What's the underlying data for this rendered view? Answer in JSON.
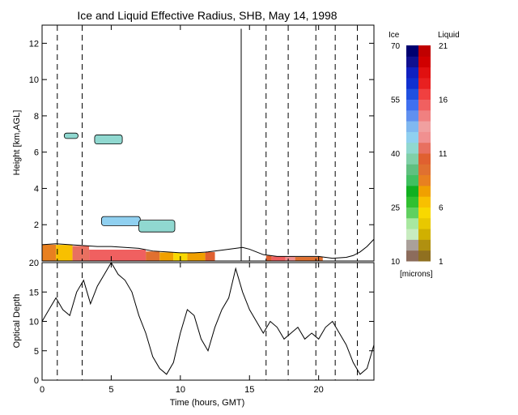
{
  "title": "Ice and Liquid Effective Radius, SHB, May 14, 1998",
  "chart_data": [
    {
      "type": "heatmap",
      "ylabel": "Height [km,AGL]",
      "xlim": [
        0,
        24
      ],
      "ylim": [
        0,
        13
      ],
      "x_ticks": [
        {
          "v": 0,
          "label": "0"
        },
        {
          "v": 5,
          "label": "5"
        },
        {
          "v": 10,
          "label": "10"
        },
        {
          "v": 15,
          "label": "15"
        },
        {
          "v": 20,
          "label": "20"
        }
      ],
      "y_ticks": [
        {
          "v": 2,
          "label": "2"
        },
        {
          "v": 4,
          "label": "4"
        },
        {
          "v": 6,
          "label": "6"
        },
        {
          "v": 8,
          "label": "8"
        },
        {
          "v": 10,
          "label": "10"
        },
        {
          "v": 12,
          "label": "12"
        }
      ],
      "dashed_lines_hours": [
        1.1,
        2.9,
        16.2,
        17.8,
        19.8,
        21.2,
        22.8
      ],
      "ice_clouds": [
        {
          "x0": 1.6,
          "x1": 2.6,
          "y0": 6.75,
          "y1": 7.05,
          "value": 40
        },
        {
          "x0": 3.8,
          "x1": 5.8,
          "y0": 6.45,
          "y1": 6.95,
          "value": 40
        },
        {
          "x0": 4.3,
          "x1": 7.1,
          "y0": 1.95,
          "y1": 2.45,
          "value": 45
        },
        {
          "x0": 7.0,
          "x1": 9.6,
          "y0": 1.6,
          "y1": 2.25,
          "value": 40
        }
      ],
      "low_cloud_top": [
        {
          "x": 0.0,
          "y": 0.9
        },
        {
          "x": 1.0,
          "y": 0.95
        },
        {
          "x": 2.0,
          "y": 0.9
        },
        {
          "x": 3.0,
          "y": 0.85
        },
        {
          "x": 4.0,
          "y": 0.8
        },
        {
          "x": 5.0,
          "y": 0.8
        },
        {
          "x": 6.0,
          "y": 0.75
        },
        {
          "x": 7.0,
          "y": 0.7
        },
        {
          "x": 8.0,
          "y": 0.55
        },
        {
          "x": 9.0,
          "y": 0.5
        },
        {
          "x": 10.0,
          "y": 0.45
        },
        {
          "x": 11.0,
          "y": 0.45
        },
        {
          "x": 12.0,
          "y": 0.5
        },
        {
          "x": 13.0,
          "y": 0.6
        },
        {
          "x": 14.0,
          "y": 0.7
        },
        {
          "x": 14.5,
          "y": 0.75
        },
        {
          "x": 15.0,
          "y": 0.65
        },
        {
          "x": 15.5,
          "y": 0.5
        },
        {
          "x": 16.0,
          "y": 0.35
        },
        {
          "x": 16.5,
          "y": 0.3
        },
        {
          "x": 17.0,
          "y": 0.25
        },
        {
          "x": 18.0,
          "y": 0.25
        },
        {
          "x": 19.0,
          "y": 0.25
        },
        {
          "x": 20.0,
          "y": 0.25
        },
        {
          "x": 20.5,
          "y": 0.2
        },
        {
          "x": 21.0,
          "y": 0.15
        },
        {
          "x": 22.0,
          "y": 0.2
        },
        {
          "x": 22.5,
          "y": 0.3
        },
        {
          "x": 23.0,
          "y": 0.5
        },
        {
          "x": 23.5,
          "y": 0.8
        },
        {
          "x": 24.0,
          "y": 1.2
        }
      ],
      "liquid_segments": [
        {
          "x0": 0.0,
          "x1": 1.0,
          "value": 8
        },
        {
          "x0": 1.0,
          "x1": 2.2,
          "value": 6
        },
        {
          "x0": 2.2,
          "x1": 3.4,
          "value": 11
        },
        {
          "x0": 3.4,
          "x1": 7.5,
          "value": 15
        },
        {
          "x0": 7.5,
          "x1": 8.5,
          "value": 9
        },
        {
          "x0": 8.5,
          "x1": 9.5,
          "value": 7
        },
        {
          "x0": 9.5,
          "x1": 10.5,
          "value": 5
        },
        {
          "x0": 10.5,
          "x1": 11.8,
          "value": 7
        },
        {
          "x0": 11.8,
          "x1": 12.5,
          "value": 10
        },
        {
          "x0": 16.2,
          "x1": 16.6,
          "value": 10
        },
        {
          "x0": 16.6,
          "x1": 17.6,
          "value": 15
        },
        {
          "x0": 17.6,
          "x1": 18.3,
          "value": 12
        },
        {
          "x0": 18.3,
          "x1": 20.3,
          "value": 9
        }
      ],
      "spike_hour": 14.4
    },
    {
      "type": "line",
      "xlabel": "Time (hours, GMT)",
      "ylabel": "Optical Depth",
      "xlim": [
        0,
        24
      ],
      "ylim": [
        0,
        20
      ],
      "x_ticks": [
        {
          "v": 0,
          "label": "0"
        },
        {
          "v": 5,
          "label": "5"
        },
        {
          "v": 10,
          "label": "10"
        },
        {
          "v": 15,
          "label": "15"
        },
        {
          "v": 20,
          "label": "20"
        }
      ],
      "y_ticks": [
        {
          "v": 0,
          "label": "0"
        },
        {
          "v": 5,
          "label": "5"
        },
        {
          "v": 10,
          "label": "10"
        },
        {
          "v": 15,
          "label": "15"
        },
        {
          "v": 20,
          "label": "20"
        }
      ],
      "x": [
        0,
        0.5,
        1,
        1.5,
        2,
        2.5,
        3,
        3.5,
        4,
        4.5,
        5,
        5.5,
        6,
        6.5,
        7,
        7.5,
        8,
        8.5,
        9,
        9.5,
        10,
        10.5,
        11,
        11.5,
        12,
        12.5,
        13,
        13.5,
        14,
        14.5,
        15,
        15.5,
        16,
        16.5,
        17,
        17.5,
        18,
        18.5,
        19,
        19.5,
        20,
        20.5,
        21,
        21.5,
        22,
        22.5,
        23,
        23.5,
        24
      ],
      "values": [
        10,
        12,
        14,
        12,
        11,
        15,
        17,
        13,
        16,
        18,
        20,
        18,
        17,
        15,
        11,
        8,
        4,
        2,
        1,
        3,
        8,
        12,
        11,
        7,
        5,
        9,
        12,
        14,
        19,
        15,
        12,
        10,
        8,
        10,
        9,
        7,
        8,
        9,
        7,
        8,
        7,
        9,
        10,
        8,
        6,
        3,
        1,
        2,
        6
      ],
      "dashed_lines_hours": [
        1.1,
        2.9,
        16.2,
        17.8,
        19.8,
        21.2,
        22.8
      ]
    }
  ],
  "colorbar": {
    "ice_label": "Ice",
    "liquid_label": "Liquid",
    "units_label": "[microns]",
    "ice_ticks": [
      {
        "v": 70,
        "label": "70"
      },
      {
        "v": 55,
        "label": "55"
      },
      {
        "v": 40,
        "label": "40"
      },
      {
        "v": 25,
        "label": "25"
      },
      {
        "v": 10,
        "label": "10"
      }
    ],
    "liquid_ticks": [
      {
        "v": 21,
        "label": "21"
      },
      {
        "v": 16,
        "label": "16"
      },
      {
        "v": 11,
        "label": "11"
      },
      {
        "v": 6,
        "label": "6"
      },
      {
        "v": 1,
        "label": "1"
      }
    ],
    "ice_range": [
      10,
      70
    ],
    "liquid_range": [
      1,
      21
    ],
    "ice_colors": [
      "#8c6c5c",
      "#aaa09a",
      "#c8ecc0",
      "#a8e8a0",
      "#60d060",
      "#30c030",
      "#10b020",
      "#40c060",
      "#60c080",
      "#80d0a8",
      "#90d8d0",
      "#90d0f0",
      "#80b8f0",
      "#6090f0",
      "#4070f0",
      "#2050e0",
      "#1030d0",
      "#1020c0",
      "#101090",
      "#000070"
    ],
    "liquid_colors": [
      "#907020",
      "#b09010",
      "#d0b000",
      "#e8c800",
      "#f8d800",
      "#f8c000",
      "#f0a000",
      "#e88020",
      "#e07030",
      "#e06030",
      "#e87060",
      "#f09090",
      "#f0a0a0",
      "#f08080",
      "#f06060",
      "#f04040",
      "#e82020",
      "#e01010",
      "#d00000",
      "#c00000"
    ]
  }
}
